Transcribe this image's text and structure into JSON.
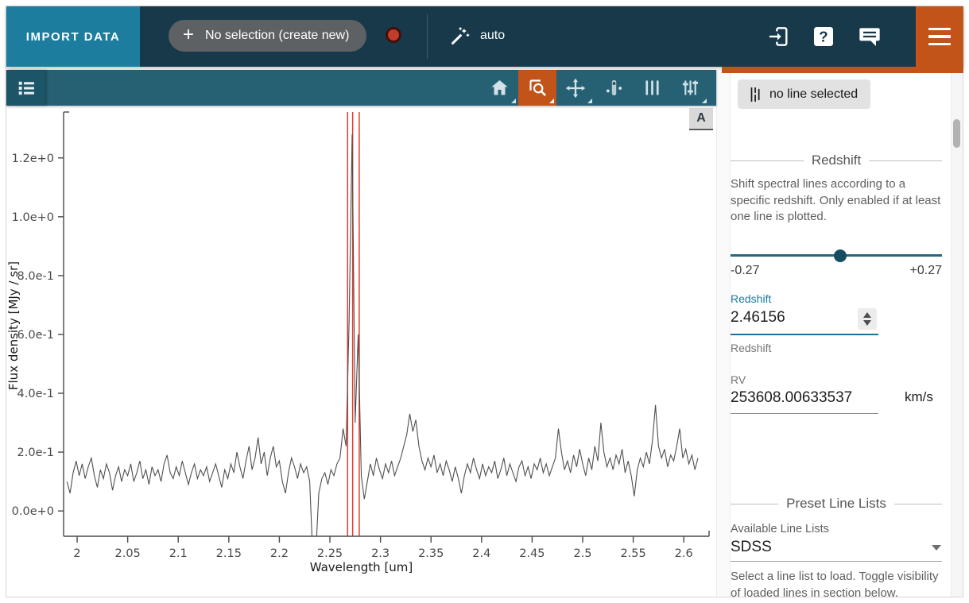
{
  "topbar": {
    "import_button": "IMPORT DATA",
    "selection_pill": "No selection (create new)",
    "subset_mode": "auto",
    "status_color": "#c23b2b",
    "accent_orange": "#c2541a",
    "icons": [
      "magic-wand-icon",
      "export-icon",
      "help-icon",
      "chat-icon",
      "hamburger-icon"
    ]
  },
  "plot_toolbar": {
    "icons": [
      "data-menu-list-icon",
      "home-icon",
      "box-zoom-icon",
      "pan-icon",
      "line-analysis-icon",
      "line-select-icon",
      "tools-sliders-icon"
    ],
    "selected_tool": "box-zoom-icon"
  },
  "plot": {
    "axes_button": "A"
  },
  "chart_data": {
    "type": "line",
    "title": "",
    "xlabel": "Wavelength [um]",
    "ylabel": "Flux density [MJy / sr]",
    "xlim": [
      1.9866,
      2.625
    ],
    "ylim": [
      -0.086,
      1.356
    ],
    "grid": false,
    "legend": "none",
    "x_tick_values": [
      2,
      2.05,
      2.1,
      2.15,
      2.2,
      2.25,
      2.3,
      2.35,
      2.4,
      2.45,
      2.5,
      2.55,
      2.6
    ],
    "x_tick_labels": [
      "2",
      "2.05",
      "2.1",
      "2.15",
      "2.2",
      "2.25",
      "2.3",
      "2.35",
      "2.4",
      "2.45",
      "2.5",
      "2.55",
      "2.6"
    ],
    "y_tick_values": [
      0.0,
      0.2,
      0.4,
      0.6,
      0.8,
      1.0,
      1.2
    ],
    "y_tick_labels": [
      "0.0e+0",
      "2.0e-1",
      "4.0e-1",
      "6.0e-1",
      "8.0e-1",
      "1.0e+0",
      "1.2e+0"
    ],
    "line_color": "#4f4f4f",
    "x_start": 1.99,
    "x_step": 0.003,
    "flux": [
      0.1,
      0.06,
      0.13,
      0.17,
      0.12,
      0.16,
      0.11,
      0.15,
      0.18,
      0.12,
      0.08,
      0.14,
      0.11,
      0.16,
      0.13,
      0.07,
      0.12,
      0.15,
      0.1,
      0.14,
      0.12,
      0.16,
      0.1,
      0.13,
      0.17,
      0.11,
      0.14,
      0.09,
      0.15,
      0.12,
      0.14,
      0.1,
      0.16,
      0.19,
      0.13,
      0.11,
      0.15,
      0.12,
      0.17,
      0.13,
      0.09,
      0.13,
      0.16,
      0.11,
      0.14,
      0.12,
      0.15,
      0.1,
      0.13,
      0.16,
      0.12,
      0.08,
      0.14,
      0.11,
      0.16,
      0.13,
      0.2,
      0.15,
      0.11,
      0.17,
      0.22,
      0.14,
      0.18,
      0.25,
      0.16,
      0.2,
      0.12,
      0.18,
      0.22,
      0.15,
      0.17,
      0.1,
      0.06,
      0.13,
      0.18,
      0.15,
      0.11,
      0.16,
      0.13,
      0.15,
      0.1,
      -0.15,
      -0.15,
      0.06,
      0.11,
      0.13,
      0.09,
      0.14,
      0.12,
      0.16,
      0.18,
      0.28,
      0.22,
      0.65,
      1.28,
      0.3,
      0.6,
      0.12,
      0.04,
      0.1,
      0.16,
      0.12,
      0.18,
      0.14,
      0.11,
      0.16,
      0.13,
      0.17,
      0.12,
      0.15,
      0.18,
      0.22,
      0.26,
      0.33,
      0.27,
      0.31,
      0.22,
      0.17,
      0.14,
      0.18,
      0.15,
      0.19,
      0.13,
      0.16,
      0.12,
      0.17,
      0.14,
      0.1,
      0.15,
      0.11,
      0.06,
      0.12,
      0.16,
      0.13,
      0.18,
      0.14,
      0.11,
      0.16,
      0.12,
      0.15,
      0.13,
      0.17,
      0.11,
      0.14,
      0.18,
      0.12,
      0.16,
      0.13,
      0.1,
      0.15,
      0.17,
      0.12,
      0.15,
      0.11,
      0.16,
      0.14,
      0.18,
      0.13,
      0.16,
      0.12,
      0.15,
      0.18,
      0.28,
      0.2,
      0.14,
      0.17,
      0.13,
      0.19,
      0.15,
      0.21,
      0.16,
      0.12,
      0.18,
      0.14,
      0.22,
      0.17,
      0.3,
      0.2,
      0.15,
      0.18,
      0.14,
      0.19,
      0.16,
      0.21,
      0.13,
      0.17,
      0.12,
      0.05,
      0.14,
      0.18,
      0.15,
      0.2,
      0.16,
      0.24,
      0.36,
      0.22,
      0.18,
      0.21,
      0.15,
      0.19,
      0.17,
      0.22,
      0.28,
      0.18,
      0.21,
      0.16,
      0.19,
      0.14,
      0.18
    ],
    "spectral_lines": {
      "color": "#e23a2e",
      "wavelengths": [
        2.2675,
        2.2725,
        2.279
      ]
    }
  },
  "sidebar": {
    "line_button": "no line selected",
    "redshift_section": {
      "title": "Redshift",
      "description": "Shift spectral lines according to a specific redshift. Only enabled if at least one line is plotted.",
      "slider": {
        "min_label": "-0.27",
        "max_label": "+0.27",
        "position_pct": 52
      },
      "redshift_input": {
        "label": "Redshift",
        "value": "2.46156",
        "hint": "Redshift"
      },
      "rv_input": {
        "label": "RV",
        "value": "253608.00633537",
        "unit": "km/s"
      }
    },
    "preset_section": {
      "title": "Preset Line Lists",
      "available_label": "Available Line Lists",
      "selected_list": "SDSS",
      "hint": "Select a line list to load. Toggle visibility of loaded lines in section below."
    }
  }
}
